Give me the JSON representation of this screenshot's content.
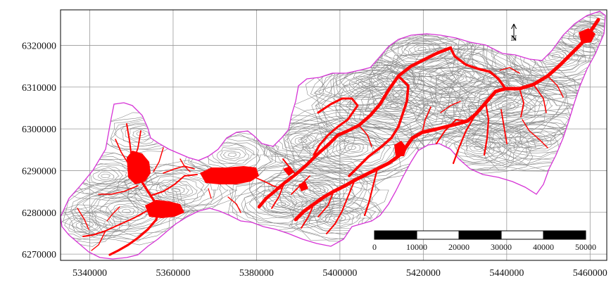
{
  "map": {
    "x_ticks": [
      "5340000",
      "5360000",
      "5380000",
      "5400000",
      "5420000",
      "5440000",
      "5460000"
    ],
    "y_ticks": [
      "6320000",
      "6310000",
      "6300000",
      "6290000",
      "6280000",
      "6270000"
    ],
    "x_range": [
      5333000,
      5464000
    ],
    "y_range": [
      6268500,
      6328500
    ],
    "grid": true,
    "colors": {
      "boundary": "#d633d6",
      "flood": "#ff0000",
      "contour": "#8a8a8a",
      "grid": "#9a9a9a",
      "frame": "#000000"
    },
    "north_arrow": {
      "label": "N",
      "placement": "top-right"
    },
    "scale_bar": {
      "labels": [
        "0",
        "10000",
        "20000",
        "30000",
        "40000",
        "50000"
      ],
      "placement": "bottom-right"
    }
  }
}
